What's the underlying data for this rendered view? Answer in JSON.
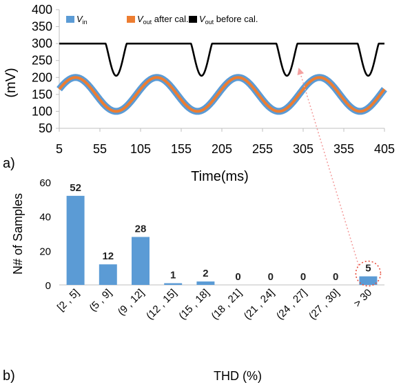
{
  "panels": {
    "a": "a)",
    "b": "b)"
  },
  "chart_data": [
    {
      "type": "line",
      "title": "",
      "xlabel": "Time(ms)",
      "ylabel": "(mV)",
      "xlim": [
        5,
        405
      ],
      "ylim": [
        50,
        400
      ],
      "xticks": [
        "5",
        "55",
        "105",
        "155",
        "205",
        "255",
        "305",
        "355",
        "405"
      ],
      "yticks": [
        "50",
        "100",
        "150",
        "200",
        "250",
        "300",
        "350",
        "400"
      ],
      "grid": false,
      "legend_position": "top",
      "legend": [
        {
          "main": "V",
          "sub": "in",
          "suffix": ""
        },
        {
          "main": "V",
          "sub": "out",
          "suffix": " after cal."
        },
        {
          "main": "V",
          "sub": "out",
          "suffix": " before cal."
        }
      ],
      "series": [
        {
          "name": "Vin",
          "color": "#5b9bd5",
          "kind": "sine",
          "offset": 150,
          "amplitude": 50,
          "period_ms": 100,
          "peak_ms": 25,
          "x": [
            5,
            25,
            75,
            125,
            175,
            225,
            275,
            325,
            375,
            405
          ],
          "y": [
            170,
            200,
            100,
            200,
            100,
            200,
            100,
            200,
            100,
            150
          ]
        },
        {
          "name": "Vout after cal.",
          "color": "#ed7d31",
          "kind": "sine",
          "offset": 150,
          "amplitude": 50,
          "period_ms": 100,
          "peak_ms": 25,
          "x": [
            5,
            25,
            75,
            125,
            175,
            225,
            275,
            325,
            375,
            405
          ],
          "y": [
            170,
            200,
            100,
            200,
            100,
            200,
            100,
            200,
            100,
            150
          ]
        },
        {
          "name": "Vout before cal.",
          "color": "#000000",
          "kind": "dips",
          "baseline": 300,
          "dip_min": 205,
          "dip_centers_ms": [
            75,
            180,
            285,
            385
          ],
          "dip_halfwidth_ms": 13
        }
      ]
    },
    {
      "type": "bar",
      "title": "",
      "xlabel": "THD (%)",
      "ylabel": "N# of Samples",
      "ylim": [
        0,
        60
      ],
      "yticks": [
        "0",
        "20",
        "40",
        "60"
      ],
      "categories": [
        "[2 , 5]",
        "(5 , 9]",
        "(9 , 12]",
        "(12 , 15]",
        "(15 , 18]",
        "(18 , 21]",
        "(21 , 24]",
        "(24 , 27]",
        "(27 , 30]",
        "> 30"
      ],
      "values": [
        52,
        12,
        28,
        1,
        2,
        0,
        0,
        0,
        0,
        5
      ],
      "data_labels": [
        "52",
        "12",
        "28",
        "1",
        "2",
        "0",
        "0",
        "0",
        "0",
        "5"
      ],
      "bar_color": "#5b9bd5",
      "highlight_category": "> 30",
      "highlight_color": "#e74c3c",
      "grid": false
    }
  ]
}
